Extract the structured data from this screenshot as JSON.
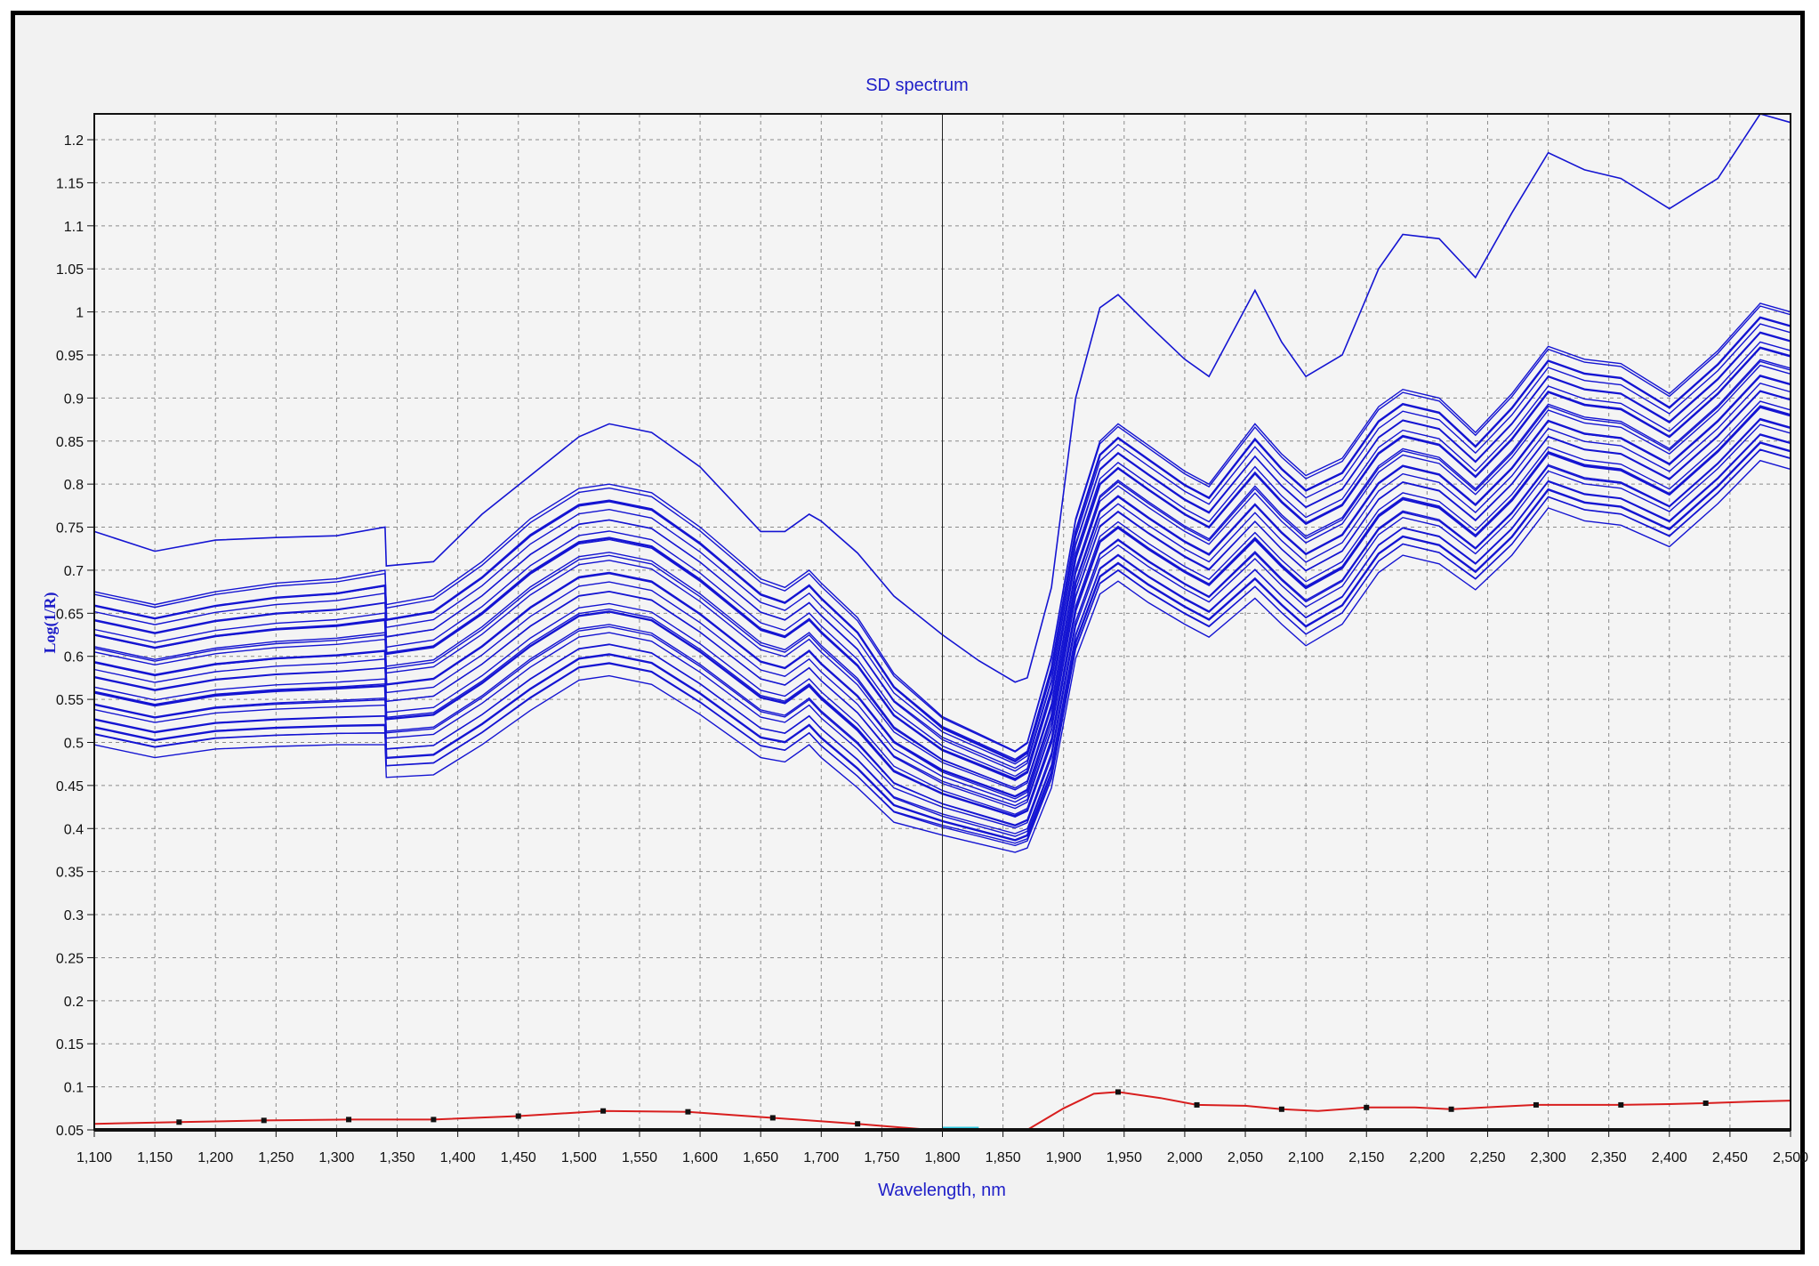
{
  "chart_data": {
    "type": "line",
    "title": "SD spectrum",
    "xlabel": "Wavelength, nm",
    "ylabel": "Log(1/R)",
    "xlim": [
      1100,
      2500
    ],
    "ylim": [
      0.05,
      1.23
    ],
    "x_ticks": [
      "1,100",
      "1,150",
      "1,200",
      "1,250",
      "1,300",
      "1,350",
      "1,400",
      "1,450",
      "1,500",
      "1,550",
      "1,600",
      "1,650",
      "1,700",
      "1,750",
      "1,800",
      "1,850",
      "1,900",
      "1,950",
      "2,000",
      "2,050",
      "2,100",
      "2,150",
      "2,200",
      "2,250",
      "2,300",
      "2,350",
      "2,400",
      "2,450",
      "2,500"
    ],
    "y_ticks": [
      "0.05",
      "0.1",
      "0.15",
      "0.2",
      "0.25",
      "0.3",
      "0.35",
      "0.4",
      "0.45",
      "0.5",
      "0.55",
      "0.6",
      "0.65",
      "0.7",
      "0.75",
      "0.8",
      "0.85",
      "0.9",
      "0.95",
      "1",
      "1.05",
      "1.1",
      "1.15",
      "1.2"
    ],
    "grid": true,
    "cursor_x": 1800,
    "sample_spectra": {
      "color": "#1414d2",
      "count": 30,
      "x": [
        1100,
        1150,
        1200,
        1250,
        1300,
        1340,
        1341,
        1380,
        1420,
        1460,
        1500,
        1525,
        1560,
        1600,
        1650,
        1670,
        1690,
        1700,
        1730,
        1760,
        1800,
        1830,
        1860,
        1870,
        1890,
        1910,
        1930,
        1945,
        1970,
        2000,
        2020,
        2058,
        2080,
        2100,
        2130,
        2160,
        2180,
        2210,
        2240,
        2270,
        2300,
        2330,
        2360,
        2400,
        2440,
        2475,
        2500
      ],
      "top": [
        0.745,
        0.722,
        0.735,
        0.738,
        0.74,
        0.75,
        0.705,
        0.71,
        0.765,
        0.81,
        0.855,
        0.87,
        0.86,
        0.82,
        0.745,
        0.745,
        0.765,
        0.757,
        0.72,
        0.67,
        0.625,
        0.595,
        0.57,
        0.575,
        0.68,
        0.9,
        1.005,
        1.02,
        0.985,
        0.945,
        0.925,
        1.025,
        0.965,
        0.925,
        0.95,
        1.05,
        1.09,
        1.085,
        1.04,
        1.115,
        1.185,
        1.165,
        1.155,
        1.12,
        1.155,
        1.23,
        1.22
      ],
      "upper_band": [
        0.675,
        0.66,
        0.675,
        0.685,
        0.69,
        0.7,
        0.66,
        0.67,
        0.71,
        0.76,
        0.795,
        0.8,
        0.79,
        0.75,
        0.69,
        0.68,
        0.7,
        0.685,
        0.645,
        0.58,
        0.53,
        0.51,
        0.49,
        0.5,
        0.6,
        0.76,
        0.85,
        0.87,
        0.845,
        0.815,
        0.8,
        0.87,
        0.835,
        0.81,
        0.83,
        0.89,
        0.91,
        0.9,
        0.86,
        0.905,
        0.96,
        0.945,
        0.94,
        0.905,
        0.955,
        1.01,
        1.0
      ],
      "lower_band": [
        0.5,
        0.485,
        0.495,
        0.498,
        0.5,
        0.5,
        0.462,
        0.465,
        0.5,
        0.54,
        0.575,
        0.58,
        0.57,
        0.535,
        0.485,
        0.48,
        0.5,
        0.485,
        0.45,
        0.41,
        0.395,
        0.385,
        0.375,
        0.38,
        0.45,
        0.6,
        0.675,
        0.69,
        0.665,
        0.64,
        0.625,
        0.67,
        0.64,
        0.615,
        0.64,
        0.7,
        0.72,
        0.71,
        0.68,
        0.72,
        0.775,
        0.76,
        0.755,
        0.73,
        0.78,
        0.83,
        0.82
      ]
    },
    "sd_curve": {
      "color": "#d81e1e",
      "x": [
        1100,
        1170,
        1240,
        1310,
        1380,
        1450,
        1520,
        1590,
        1660,
        1730,
        1790,
        1830,
        1870,
        1900,
        1925,
        1945,
        1980,
        2010,
        2050,
        2080,
        2110,
        2150,
        2190,
        2220,
        2260,
        2290,
        2330,
        2360,
        2400,
        2430,
        2470,
        2500
      ],
      "y": [
        0.057,
        0.059,
        0.061,
        0.062,
        0.062,
        0.066,
        0.072,
        0.071,
        0.064,
        0.057,
        0.05,
        0.049,
        0.05,
        0.075,
        0.092,
        0.094,
        0.087,
        0.079,
        0.078,
        0.074,
        0.072,
        0.076,
        0.076,
        0.074,
        0.077,
        0.079,
        0.079,
        0.079,
        0.08,
        0.081,
        0.083,
        0.084
      ],
      "markers_x": [
        1170,
        1240,
        1310,
        1380,
        1450,
        1520,
        1590,
        1660,
        1730,
        1945,
        2010,
        2080,
        2150,
        2220,
        2290,
        2360,
        2430
      ]
    }
  }
}
